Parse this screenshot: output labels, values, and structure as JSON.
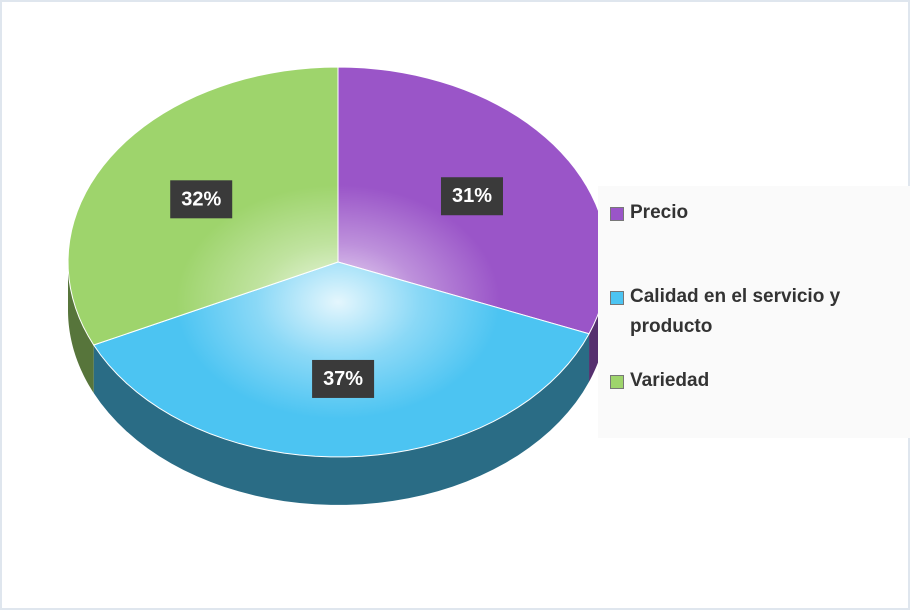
{
  "chart_data": {
    "type": "pie",
    "categories": [
      "Precio",
      "Calidad en el servicio y producto",
      "Variedad"
    ],
    "values": [
      31,
      37,
      32
    ],
    "value_labels": [
      "31%",
      "37%",
      "32%"
    ],
    "colors": [
      "#9a55c8",
      "#4cc4f2",
      "#9ed46c"
    ],
    "legend": "right"
  }
}
